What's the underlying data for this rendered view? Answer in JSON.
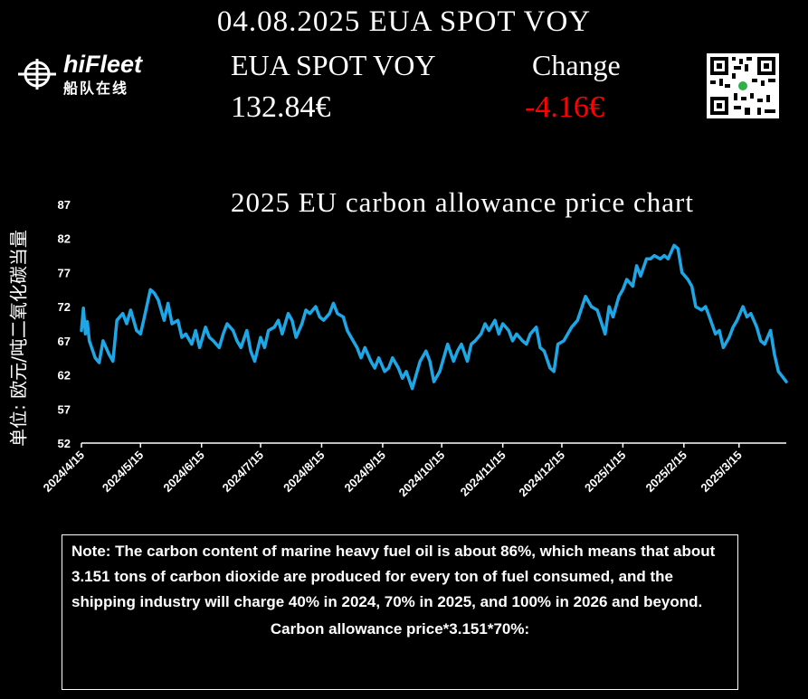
{
  "header": {
    "title": "04.08.2025 EUA SPOT VOY",
    "instrument_label": "EUA SPOT VOY",
    "price": "132.84€",
    "change_label": "Change",
    "change": "-4.16€",
    "change_color": "#ff0000"
  },
  "brand": {
    "name": "hiFleet",
    "subtitle": "船队在线",
    "logo_icon": "ship-globe-icon",
    "qr_icon": "qr-code-icon"
  },
  "y_unit_label": "单位: 欧元/吨二氧化碳当量",
  "note": {
    "text": "Note: The carbon content of marine heavy fuel oil is about 86%, which means that about 3.151 tons of carbon dioxide are produced for every ton of fuel consumed, and the shipping industry will charge 40% in 2024, 70% in 2025, and 100% in 2026 and beyond.",
    "formula": "Carbon allowance price*3.151*70%:"
  },
  "chart_data": {
    "type": "line",
    "title": "2025 EU carbon allowance price chart",
    "ylabel": "单位: 欧元/吨二氧化碳当量",
    "ylim": [
      52,
      87
    ],
    "yticks": [
      52,
      57,
      62,
      67,
      72,
      77,
      82,
      87
    ],
    "xlim": [
      "2024-04-15",
      "2025-04-08"
    ],
    "xticks": [
      "2024/4/15",
      "2024/5/15",
      "2024/6/15",
      "2024/7/15",
      "2024/8/15",
      "2024/9/15",
      "2024/10/15",
      "2024/11/15",
      "2024/12/15",
      "2025/1/15",
      "2025/2/15",
      "2025/3/15"
    ],
    "grid": false,
    "line_color": "#1ea7e6",
    "series": [
      {
        "x": [
          "2024-04-15",
          "2024-04-16",
          "2024-04-17",
          "2024-04-18",
          "2024-04-19",
          "2024-04-22",
          "2024-04-24",
          "2024-04-26",
          "2024-04-29",
          "2024-05-01",
          "2024-05-03",
          "2024-05-06",
          "2024-05-08",
          "2024-05-10",
          "2024-05-13",
          "2024-05-15",
          "2024-05-17",
          "2024-05-20",
          "2024-05-22",
          "2024-05-24",
          "2024-05-27",
          "2024-05-29",
          "2024-05-31",
          "2024-06-03",
          "2024-06-05",
          "2024-06-07",
          "2024-06-10",
          "2024-06-12",
          "2024-06-14",
          "2024-06-17",
          "2024-06-19",
          "2024-06-21",
          "2024-06-24",
          "2024-06-26",
          "2024-06-28",
          "2024-07-01",
          "2024-07-03",
          "2024-07-05",
          "2024-07-08",
          "2024-07-10",
          "2024-07-12",
          "2024-07-15",
          "2024-07-17",
          "2024-07-19",
          "2024-07-22",
          "2024-07-24",
          "2024-07-26",
          "2024-07-29",
          "2024-07-31",
          "2024-08-02",
          "2024-08-05",
          "2024-08-07",
          "2024-08-09",
          "2024-08-12",
          "2024-08-14",
          "2024-08-16",
          "2024-08-19",
          "2024-08-21",
          "2024-08-23",
          "2024-08-26",
          "2024-08-28",
          "2024-08-30",
          "2024-09-02",
          "2024-09-04",
          "2024-09-06",
          "2024-09-09",
          "2024-09-11",
          "2024-09-13",
          "2024-09-16",
          "2024-09-18",
          "2024-09-20",
          "2024-09-23",
          "2024-09-25",
          "2024-09-27",
          "2024-09-30",
          "2024-10-02",
          "2024-10-04",
          "2024-10-07",
          "2024-10-09",
          "2024-10-11",
          "2024-10-14",
          "2024-10-16",
          "2024-10-18",
          "2024-10-21",
          "2024-10-23",
          "2024-10-25",
          "2024-10-28",
          "2024-10-30",
          "2024-11-01",
          "2024-11-04",
          "2024-11-06",
          "2024-11-08",
          "2024-11-11",
          "2024-11-13",
          "2024-11-15",
          "2024-11-18",
          "2024-11-20",
          "2024-11-22",
          "2024-11-25",
          "2024-11-27",
          "2024-11-29",
          "2024-12-02",
          "2024-12-04",
          "2024-12-06",
          "2024-12-09",
          "2024-12-11",
          "2024-12-13",
          "2024-12-16",
          "2024-12-18",
          "2024-12-20",
          "2024-12-23",
          "2024-12-27",
          "2024-12-30",
          "2025-01-02",
          "2025-01-06",
          "2025-01-08",
          "2025-01-10",
          "2025-01-13",
          "2025-01-15",
          "2025-01-17",
          "2025-01-20",
          "2025-01-22",
          "2025-01-24",
          "2025-01-27",
          "2025-01-29",
          "2025-01-31",
          "2025-02-03",
          "2025-02-05",
          "2025-02-07",
          "2025-02-10",
          "2025-02-12",
          "2025-02-14",
          "2025-02-17",
          "2025-02-19",
          "2025-02-21",
          "2025-02-24",
          "2025-02-26",
          "2025-02-28",
          "2025-03-03",
          "2025-03-05",
          "2025-03-07",
          "2025-03-10",
          "2025-03-12",
          "2025-03-14",
          "2025-03-17",
          "2025-03-19",
          "2025-03-21",
          "2025-03-24",
          "2025-03-26",
          "2025-03-28",
          "2025-03-31",
          "2025-04-02",
          "2025-04-04",
          "2025-04-08"
        ],
        "y": [
          68.5,
          71.8,
          68.0,
          69.8,
          67.0,
          64.5,
          63.8,
          67.0,
          65.0,
          64.0,
          70.0,
          71.0,
          69.5,
          71.5,
          68.5,
          68.0,
          70.5,
          74.5,
          74.0,
          73.0,
          70.0,
          72.5,
          69.5,
          70.0,
          67.5,
          68.0,
          66.5,
          68.5,
          66.0,
          69.0,
          67.5,
          67.0,
          66.0,
          68.0,
          69.5,
          68.5,
          67.0,
          66.0,
          68.5,
          65.5,
          64.0,
          67.5,
          66.0,
          68.5,
          69.0,
          70.0,
          68.0,
          71.0,
          70.0,
          67.5,
          69.5,
          71.5,
          71.0,
          72.0,
          70.5,
          70.0,
          71.0,
          72.5,
          71.0,
          70.5,
          68.5,
          67.5,
          66.0,
          64.5,
          66.0,
          64.0,
          63.0,
          64.5,
          62.5,
          63.0,
          64.5,
          63.0,
          61.5,
          62.5,
          60.0,
          62.0,
          64.0,
          65.5,
          64.0,
          61.0,
          62.5,
          64.5,
          66.5,
          64.0,
          65.5,
          66.5,
          64.0,
          66.5,
          67.0,
          68.0,
          69.5,
          68.5,
          70.0,
          68.0,
          69.5,
          68.5,
          67.0,
          68.0,
          67.0,
          66.5,
          68.0,
          69.0,
          66.0,
          65.5,
          63.0,
          62.5,
          66.5,
          67.0,
          68.0,
          69.0,
          70.0,
          73.5,
          72.0,
          71.5,
          68.0,
          72.0,
          70.5,
          73.5,
          74.5,
          76.0,
          75.0,
          78.0,
          76.5,
          79.0,
          79.0,
          79.5,
          79.0,
          79.5,
          79.0,
          81.0,
          80.5,
          77.0,
          76.0,
          75.0,
          72.0,
          71.5,
          72.0,
          70.5,
          68.0,
          68.5,
          66.0,
          67.5,
          69.0,
          70.0,
          72.0,
          70.5,
          71.0,
          69.0,
          67.0,
          66.5,
          68.5,
          65.0,
          62.5,
          61.0
        ]
      }
    ]
  }
}
